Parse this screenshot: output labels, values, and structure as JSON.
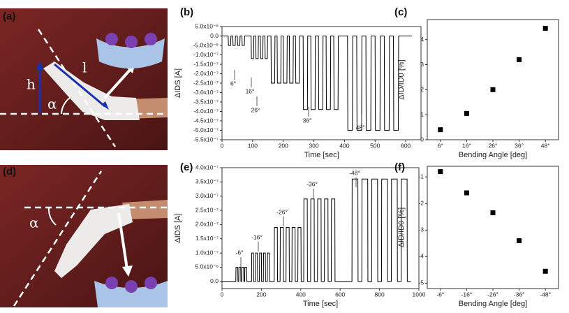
{
  "photos": [
    {
      "label": "(a)",
      "annotations": [
        "h",
        "l",
        "α"
      ]
    },
    {
      "label": "(d)",
      "annotations": [
        "α"
      ]
    }
  ],
  "chart_data": [
    {
      "type": "line",
      "label": "(b)",
      "xlabel": "Time [sec]",
      "ylabel": "ΔIDS [A]",
      "color": "#000000",
      "xlim": [
        0,
        650
      ],
      "ylim": [
        -5.5e-07,
        5e-08
      ],
      "xticks": [
        0,
        100,
        200,
        300,
        400,
        500,
        600
      ],
      "yticks": [
        {
          "value": 5e-08,
          "label": "5.0x10⁻⁸"
        },
        {
          "value": 0,
          "label": "0.0"
        },
        {
          "value": -5e-08,
          "label": "-5.0x10⁻⁸"
        },
        {
          "value": -1e-07,
          "label": "-1.0x10⁻⁷"
        },
        {
          "value": -1.5e-07,
          "label": "-1.5x10⁻⁷"
        },
        {
          "value": -2e-07,
          "label": "-2.0x10⁻⁷"
        },
        {
          "value": -2.5e-07,
          "label": "-2.5x10⁻⁷"
        },
        {
          "value": -3e-07,
          "label": "-3.0x10⁻⁷"
        },
        {
          "value": -3.5e-07,
          "label": "-3.5x10⁻⁷"
        },
        {
          "value": -4e-07,
          "label": "-4.0x10⁻⁷"
        },
        {
          "value": -4.5e-07,
          "label": "-4.5x10⁻⁷"
        },
        {
          "value": -5e-07,
          "label": "-5.0x10⁻⁷"
        },
        {
          "value": -5.5e-07,
          "label": "-5.5x10⁻⁷"
        }
      ],
      "annotations": [
        "6°",
        "16°",
        "26°",
        "36°",
        "48°"
      ],
      "x": [
        0,
        20,
        21,
        28,
        29,
        35,
        36,
        43,
        44,
        50,
        51,
        58,
        59,
        65,
        66,
        73,
        74,
        95,
        96,
        103,
        104,
        110,
        111,
        118,
        119,
        125,
        126,
        133,
        134,
        140,
        141,
        148,
        149,
        160,
        161,
        172,
        173,
        180,
        181,
        192,
        193,
        200,
        201,
        212,
        213,
        220,
        221,
        232,
        233,
        240,
        241,
        252,
        253,
        265,
        266,
        279,
        280,
        290,
        291,
        304,
        305,
        315,
        316,
        329,
        330,
        340,
        341,
        354,
        355,
        365,
        366,
        379,
        380,
        410,
        411,
        426,
        427,
        440,
        441,
        456,
        457,
        470,
        471,
        486,
        487,
        500,
        501,
        516,
        517,
        530,
        531,
        546,
        547,
        560,
        561,
        576,
        577,
        620
      ],
      "values": [
        0,
        0,
        -5e-08,
        -5e-08,
        0,
        0,
        -5e-08,
        -5e-08,
        0,
        0,
        -5e-08,
        -5e-08,
        0,
        0,
        -5e-08,
        -5e-08,
        0,
        0,
        -1.2e-07,
        -1.2e-07,
        0,
        0,
        -1.2e-07,
        -1.2e-07,
        0,
        0,
        -1.2e-07,
        -1.2e-07,
        0,
        0,
        -1.2e-07,
        -1.2e-07,
        0,
        0,
        -2.5e-07,
        -2.5e-07,
        0,
        0,
        -2.5e-07,
        -2.5e-07,
        0,
        0,
        -2.5e-07,
        -2.5e-07,
        0,
        0,
        -2.5e-07,
        -2.5e-07,
        0,
        0,
        -2.5e-07,
        -2.5e-07,
        0,
        0,
        -3.9e-07,
        -3.9e-07,
        0,
        0,
        -3.9e-07,
        -3.9e-07,
        0,
        0,
        -3.9e-07,
        -3.9e-07,
        0,
        0,
        -3.9e-07,
        -3.9e-07,
        0,
        0,
        -3.9e-07,
        -3.9e-07,
        0,
        0,
        -5e-07,
        -5e-07,
        0,
        0,
        -5e-07,
        -5e-07,
        0,
        0,
        -5e-07,
        -5e-07,
        0,
        0,
        -5e-07,
        -5e-07,
        0,
        0,
        -5e-07,
        -5e-07,
        0,
        0,
        -5e-07,
        -5e-07,
        0,
        0
      ]
    },
    {
      "type": "scatter",
      "label": "(c)",
      "xlabel": "Bending Angle [deg]",
      "ylabel": "ΔID/ID0 [%]",
      "color": "#000000",
      "categories": [
        "6°",
        "16°",
        "26°",
        "36°",
        "48°"
      ],
      "values": [
        0.4,
        1.05,
        2.0,
        3.2,
        4.45
      ],
      "ylim": [
        0,
        4.8
      ],
      "yticks": [
        0,
        1,
        2,
        3,
        4
      ]
    },
    {
      "type": "line",
      "label": "(e)",
      "xlabel": "Time [sec]",
      "ylabel": "ΔIDS [A]",
      "color": "#000000",
      "xlim": [
        0,
        1000
      ],
      "ylim": [
        -2.5e-08,
        4e-07
      ],
      "xticks": [
        0,
        200,
        400,
        600,
        800,
        1000
      ],
      "yticks": [
        {
          "value": 0,
          "label": "0.0"
        },
        {
          "value": 5e-08,
          "label": "5.0x10⁻⁸"
        },
        {
          "value": 1e-07,
          "label": "1.0x10⁻⁷"
        },
        {
          "value": 1.5e-07,
          "label": "1.5x10⁻⁷"
        },
        {
          "value": 2e-07,
          "label": "2.0x10⁻⁷"
        },
        {
          "value": 2.5e-07,
          "label": "2.5x10⁻⁷"
        },
        {
          "value": 3e-07,
          "label": "3.0x10⁻⁷"
        },
        {
          "value": 3.5e-07,
          "label": "3.5x10⁻⁷"
        },
        {
          "value": 4e-07,
          "label": "4.0x10⁻⁷"
        }
      ],
      "annotations": [
        "-6°",
        "-16°",
        "-26°",
        "-36°",
        "-48°"
      ],
      "x": [
        0,
        70,
        71,
        80,
        81,
        85,
        86,
        95,
        96,
        100,
        101,
        110,
        111,
        115,
        116,
        125,
        126,
        150,
        151,
        160,
        161,
        170,
        171,
        180,
        181,
        190,
        191,
        200,
        201,
        210,
        211,
        220,
        221,
        230,
        231,
        240,
        241,
        265,
        266,
        281,
        282,
        295,
        296,
        311,
        312,
        325,
        326,
        341,
        342,
        355,
        356,
        371,
        372,
        385,
        386,
        401,
        402,
        415,
        416,
        433,
        434,
        450,
        451,
        468,
        469,
        485,
        486,
        503,
        504,
        520,
        521,
        538,
        539,
        555,
        556,
        573,
        574,
        660,
        661,
        690,
        691,
        710,
        711,
        740,
        741,
        760,
        761,
        790,
        791,
        810,
        811,
        840,
        841,
        860,
        861,
        890,
        891,
        910,
        911,
        940,
        941,
        960
      ],
      "values": [
        0,
        0,
        5e-08,
        5e-08,
        0,
        0,
        5e-08,
        5e-08,
        0,
        0,
        5e-08,
        5e-08,
        0,
        0,
        5e-08,
        5e-08,
        0,
        0,
        1e-07,
        1e-07,
        0,
        0,
        1e-07,
        1e-07,
        0,
        0,
        1e-07,
        1e-07,
        0,
        0,
        1e-07,
        1e-07,
        0,
        0,
        1e-07,
        1e-07,
        0,
        0,
        1.9e-07,
        1.9e-07,
        0,
        0,
        1.9e-07,
        1.9e-07,
        0,
        0,
        1.9e-07,
        1.9e-07,
        0,
        0,
        1.9e-07,
        1.9e-07,
        0,
        0,
        1.9e-07,
        1.9e-07,
        0,
        0,
        2.9e-07,
        2.9e-07,
        0,
        0,
        2.9e-07,
        2.9e-07,
        0,
        0,
        2.9e-07,
        2.9e-07,
        0,
        0,
        2.9e-07,
        2.9e-07,
        0,
        0,
        2.9e-07,
        2.9e-07,
        0,
        0,
        3.6e-07,
        3.6e-07,
        0,
        0,
        3.6e-07,
        3.6e-07,
        0,
        0,
        3.6e-07,
        3.6e-07,
        0,
        0,
        3.6e-07,
        3.6e-07,
        0,
        0,
        3.6e-07,
        3.6e-07,
        0,
        0,
        3.6e-07,
        3.6e-07,
        0,
        0
      ]
    },
    {
      "type": "scatter",
      "label": "(f)",
      "xlabel": "Bending Angle [deg]",
      "ylabel": "ΔID/ID0 [%]",
      "color": "#000000",
      "categories": [
        "-6°",
        "-16°",
        "-26°",
        "-36°",
        "-48°"
      ],
      "values": [
        -0.8,
        -1.6,
        -2.35,
        -3.4,
        -4.55
      ],
      "ylim": [
        -5.2,
        -0.6
      ],
      "yticks": [
        -1,
        -2,
        -3,
        -4,
        -5
      ]
    }
  ]
}
